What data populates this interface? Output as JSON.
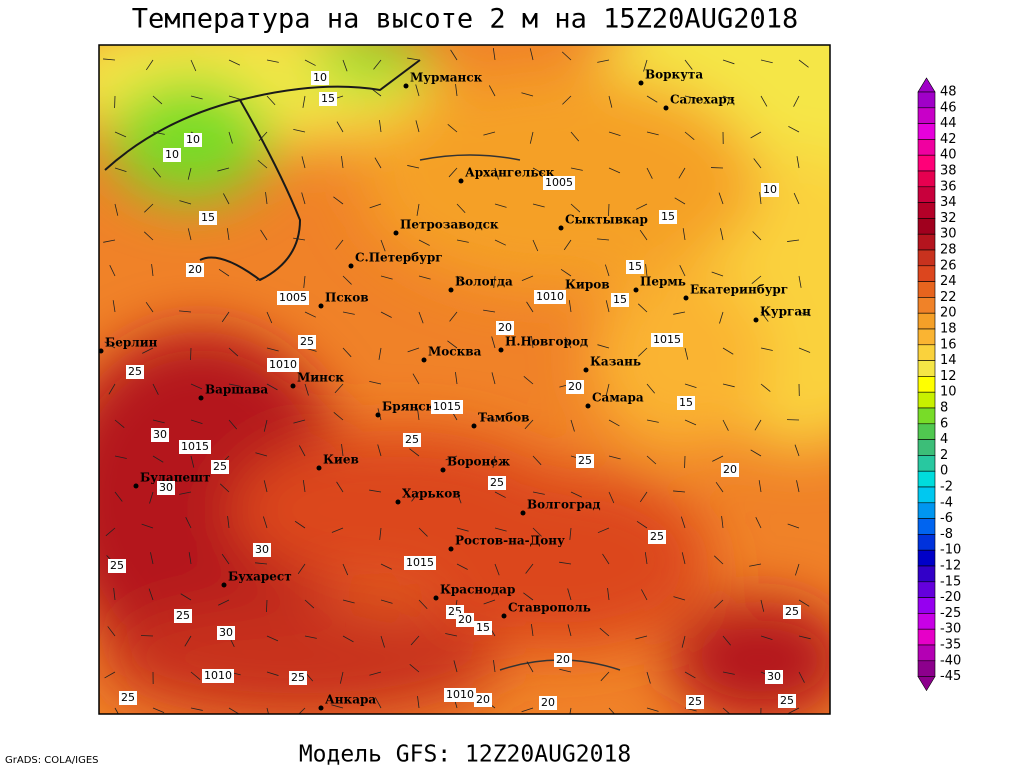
{
  "title": "Температура на высоте 2 м на 15Z20AUG2018",
  "footer": "Модель GFS: 12Z20AUG2018",
  "credit": "GrADS: COLA/IGES",
  "cities": [
    "Мурманск",
    "Воркута",
    "Салехард",
    "Архангельск",
    "Сыктывкар",
    "Петрозаводск",
    "С.Петербург",
    "Вологда",
    "Киров",
    "Пермь",
    "Екатеринбург",
    "Курган",
    "Псков",
    "Берлин",
    "Н.Новгород",
    "Москва",
    "Казань",
    "Минск",
    "Варшава",
    "Самара",
    "Брянск",
    "Тамбов",
    "Воронеж",
    "Киев",
    "Будапешт",
    "Харьков",
    "Волгоград",
    "Ростов-на-Дону",
    "Бухарест",
    "Краснодар",
    "Ставрополь",
    "Анкара"
  ],
  "contour_labels": [
    10,
    15,
    10,
    10,
    1005,
    15,
    15,
    10,
    20,
    1005,
    1010,
    15,
    15,
    1015,
    25,
    1010,
    25,
    20,
    20,
    15,
    1015,
    30,
    1015,
    25,
    25,
    25,
    20,
    30,
    25,
    30,
    25,
    25,
    1015,
    25,
    25,
    20,
    15,
    30,
    25,
    1010,
    25,
    30,
    25,
    1010,
    20,
    20,
    25,
    25,
    20
  ],
  "colorbar": {
    "labels": [
      48,
      46,
      44,
      42,
      40,
      38,
      36,
      34,
      32,
      30,
      28,
      26,
      24,
      22,
      20,
      18,
      16,
      14,
      12,
      10,
      8,
      6,
      4,
      2,
      0,
      -2,
      -4,
      -6,
      -8,
      -10,
      -12,
      -15,
      -20,
      -25,
      -30,
      -35,
      -40,
      -45
    ],
    "colors": [
      "#a000c8",
      "#c800c8",
      "#e600dc",
      "#f000a0",
      "#ff0078",
      "#e60050",
      "#c8003c",
      "#b40028",
      "#a0001e",
      "#b4141e",
      "#c8321e",
      "#dc461e",
      "#e6641e",
      "#f08228",
      "#f5a028",
      "#fab432",
      "#fad23c",
      "#f5e646",
      "#ffff00",
      "#c8f000",
      "#78dc28",
      "#50c850",
      "#3cbe78",
      "#28c8a0",
      "#00dcdc",
      "#00c8f0",
      "#0096f0",
      "#0064f0",
      "#0032dc",
      "#0000c8",
      "#3200c8",
      "#6400dc",
      "#9600f0",
      "#c800e6",
      "#e600c8",
      "#b400b4",
      "#8c008c"
    ]
  }
}
